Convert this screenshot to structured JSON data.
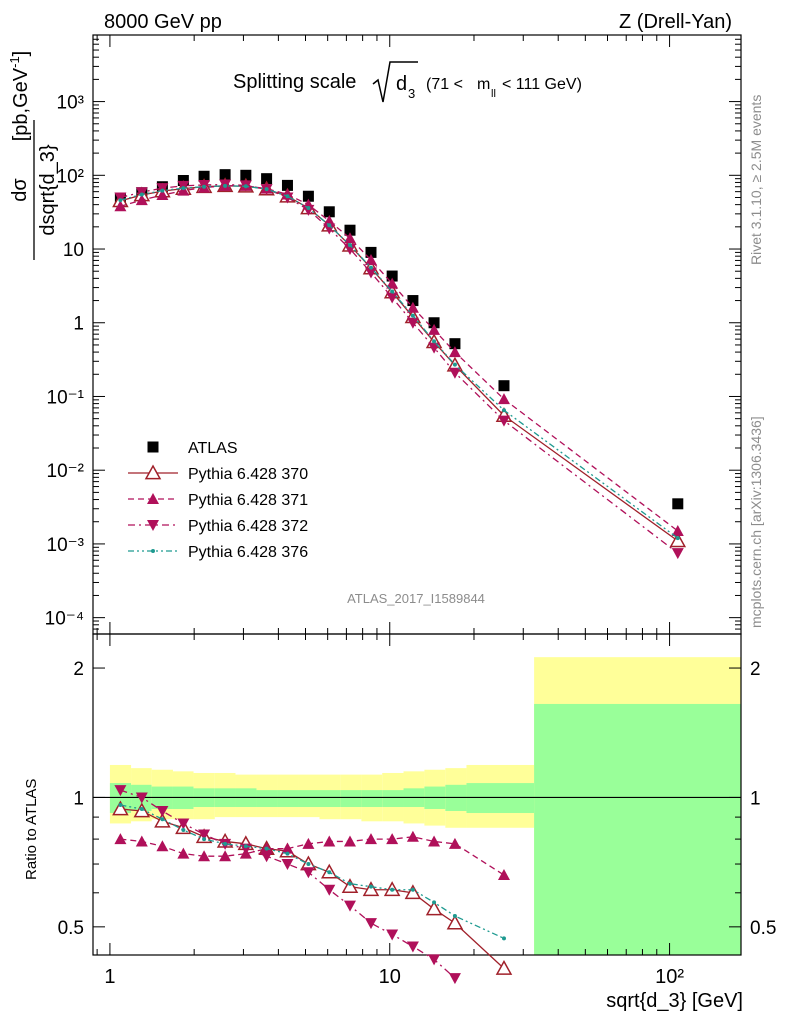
{
  "header": {
    "left": "8000 GeV pp",
    "right": "Z (Drell-Yan)"
  },
  "plot_title": {
    "main": "Splitting scale",
    "var": "d",
    "var_sub": "3",
    "cut_open": "(71 <",
    "cut_var": "m",
    "cut_sub": "ll",
    "cut_close": "< 111 GeV)"
  },
  "side_labels": {
    "rivet": "Rivet 3.1.10, ≥ 2.5M events",
    "mcplots": "mcplots.cern.ch [arXiv:1306.3436]"
  },
  "watermark": "ATLAS_2017_I1589844",
  "legend": [
    {
      "label": "ATLAS"
    },
    {
      "label": "Pythia 6.428 370"
    },
    {
      "label": "Pythia 6.428 371"
    },
    {
      "label": "Pythia 6.428 372"
    },
    {
      "label": "Pythia 6.428 376"
    }
  ],
  "colors": {
    "atlas": "#000000",
    "p370": "#a0202a",
    "p371": "#b0105a",
    "p372": "#b0105a",
    "p376": "#1e9a90",
    "band_inner": "#99ff99",
    "band_outer": "#ffff99"
  },
  "chart_data": [
    {
      "type": "scatter",
      "panel": "main",
      "ylabel": "dσ/dsqrt{d_3} [pb,GeV⁻¹]",
      "yscale": "log",
      "xscale": "log",
      "ylim": [
        6e-05,
        8000
      ],
      "xlim": [
        0.87,
        180
      ],
      "y_ticks": [
        "10⁻⁴",
        "10⁻³",
        "10⁻²",
        "10⁻¹",
        "1",
        "10",
        "10²",
        "10³"
      ],
      "series": [
        {
          "name": "ATLAS",
          "marker": "square",
          "x": [
            1.09,
            1.3,
            1.54,
            1.83,
            2.17,
            2.58,
            3.06,
            3.63,
            4.31,
            5.12,
            6.08,
            7.21,
            8.57,
            10.2,
            12.1,
            14.4,
            17.1,
            25.6,
            107
          ],
          "y": [
            48,
            58,
            70,
            85,
            97,
            102,
            100,
            90,
            73,
            52,
            32,
            18,
            9.0,
            4.3,
            2.0,
            1.0,
            0.52,
            0.14,
            0.0035
          ]
        },
        {
          "name": "Pythia 6.428 370",
          "marker": "open-triangle-up",
          "line": "solid",
          "x": [
            1.09,
            1.3,
            1.54,
            1.83,
            2.17,
            2.58,
            3.06,
            3.63,
            4.31,
            5.12,
            6.08,
            7.21,
            8.57,
            10.2,
            12.1,
            14.4,
            17.1,
            25.6,
            107
          ],
          "y": [
            45,
            54,
            61,
            66,
            70,
            72,
            71,
            65,
            52,
            36,
            21,
            11.2,
            5.5,
            2.6,
            1.2,
            0.55,
            0.265,
            0.055,
            0.0011
          ]
        },
        {
          "name": "Pythia 6.428 371",
          "marker": "filled-triangle-up",
          "line": "dashed",
          "x": [
            1.09,
            1.3,
            1.54,
            1.83,
            2.17,
            2.58,
            3.06,
            3.63,
            4.31,
            5.12,
            6.08,
            7.21,
            8.57,
            10.2,
            12.1,
            14.4,
            17.1,
            25.6,
            107
          ],
          "y": [
            38,
            46,
            54,
            62,
            68,
            72,
            72,
            66,
            55,
            40,
            24,
            14,
            7.1,
            3.4,
            1.6,
            0.8,
            0.4,
            0.092,
            0.0015
          ]
        },
        {
          "name": "Pythia 6.428 372",
          "marker": "filled-triangle-down",
          "line": "dash-dot",
          "x": [
            1.09,
            1.3,
            1.54,
            1.83,
            2.17,
            2.58,
            3.06,
            3.63,
            4.31,
            5.12,
            6.08,
            7.21,
            8.57,
            10.2,
            12.1,
            14.4,
            17.1,
            25.6,
            107
          ],
          "y": [
            50,
            59,
            67,
            72,
            74,
            75,
            73,
            65,
            50,
            34,
            19,
            10,
            4.8,
            2.2,
            1.0,
            0.46,
            0.21,
            0.047,
            0.00075
          ]
        },
        {
          "name": "Pythia 6.428 376",
          "marker": "dot",
          "line": "dash-dot-dot",
          "x": [
            1.09,
            1.3,
            1.54,
            1.83,
            2.17,
            2.58,
            3.06,
            3.63,
            4.31,
            5.12,
            6.08,
            7.21,
            8.57,
            10.2,
            12.1,
            14.4,
            17.1,
            25.6,
            107
          ],
          "y": [
            46,
            55,
            62,
            67,
            70,
            72,
            71,
            65,
            52,
            36,
            21,
            11.3,
            5.6,
            2.65,
            1.25,
            0.56,
            0.27,
            0.065,
            0.0012
          ]
        }
      ]
    },
    {
      "type": "line",
      "panel": "ratio",
      "ylabel": "Ratio to ATLAS",
      "xlabel": "sqrt{d_3} [GeV]",
      "xscale": "log",
      "yscale": "log",
      "xlim": [
        0.87,
        180
      ],
      "ylim": [
        0.43,
        2.4
      ],
      "x_ticks": [
        "1",
        "10",
        "10²"
      ],
      "y_ticks": [
        "0.5",
        "1",
        "2"
      ],
      "band_edges": [
        1.0,
        1.19,
        1.41,
        1.68,
        1.99,
        2.37,
        2.81,
        3.34,
        3.97,
        4.72,
        5.61,
        6.66,
        7.92,
        9.4,
        11.2,
        13.3,
        15.8,
        18.8,
        32.8,
        180
      ],
      "band_inner_upper": [
        1.08,
        1.07,
        1.06,
        1.06,
        1.05,
        1.05,
        1.05,
        1.04,
        1.04,
        1.04,
        1.04,
        1.04,
        1.04,
        1.04,
        1.05,
        1.06,
        1.07,
        1.08,
        1.65
      ],
      "band_inner_lower": [
        0.92,
        0.93,
        0.94,
        0.94,
        0.95,
        0.95,
        0.95,
        0.95,
        0.95,
        0.95,
        0.95,
        0.95,
        0.95,
        0.95,
        0.95,
        0.94,
        0.93,
        0.92,
        0.37
      ],
      "band_outer_upper": [
        1.19,
        1.17,
        1.16,
        1.15,
        1.14,
        1.14,
        1.13,
        1.13,
        1.13,
        1.13,
        1.13,
        1.13,
        1.13,
        1.14,
        1.15,
        1.16,
        1.17,
        1.19,
        2.12
      ],
      "band_outer_lower": [
        0.87,
        0.88,
        0.89,
        0.89,
        0.89,
        0.9,
        0.9,
        0.9,
        0.9,
        0.9,
        0.89,
        0.89,
        0.88,
        0.88,
        0.87,
        0.86,
        0.85,
        0.85,
        0.35
      ],
      "series": [
        {
          "name": "Pythia 6.428 370",
          "x": [
            1.09,
            1.3,
            1.54,
            1.83,
            2.17,
            2.58,
            3.06,
            3.63,
            4.31,
            5.12,
            6.08,
            7.21,
            8.57,
            10.2,
            12.1,
            14.4,
            17.1,
            25.6
          ],
          "y": [
            0.94,
            0.93,
            0.88,
            0.85,
            0.81,
            0.79,
            0.78,
            0.76,
            0.75,
            0.7,
            0.67,
            0.62,
            0.61,
            0.61,
            0.6,
            0.55,
            0.51,
            0.4
          ]
        },
        {
          "name": "Pythia 6.428 371",
          "x": [
            1.09,
            1.3,
            1.54,
            1.83,
            2.17,
            2.58,
            3.06,
            3.63,
            4.31,
            5.12,
            6.08,
            7.21,
            8.57,
            10.2,
            12.1,
            14.4,
            17.1,
            25.6
          ],
          "y": [
            0.8,
            0.79,
            0.77,
            0.74,
            0.73,
            0.73,
            0.74,
            0.76,
            0.76,
            0.78,
            0.79,
            0.79,
            0.8,
            0.8,
            0.81,
            0.79,
            0.78,
            0.66
          ]
        },
        {
          "name": "Pythia 6.428 372",
          "x": [
            1.09,
            1.3,
            1.54,
            1.83,
            2.17,
            2.58,
            3.06,
            3.63,
            4.31,
            5.12,
            6.08,
            7.21,
            8.57,
            10.2,
            12.1,
            14.4,
            17.1
          ],
          "y": [
            1.04,
            1.0,
            0.93,
            0.87,
            0.82,
            0.78,
            0.76,
            0.73,
            0.7,
            0.67,
            0.61,
            0.56,
            0.51,
            0.48,
            0.45,
            0.42,
            0.38
          ]
        },
        {
          "name": "Pythia 6.428 376",
          "x": [
            1.09,
            1.3,
            1.54,
            1.83,
            2.17,
            2.58,
            3.06,
            3.63,
            4.31,
            5.12,
            6.08,
            7.21,
            8.57,
            10.2,
            12.1,
            14.4,
            17.1,
            25.6
          ],
          "y": [
            0.96,
            0.94,
            0.89,
            0.84,
            0.8,
            0.78,
            0.77,
            0.76,
            0.74,
            0.7,
            0.67,
            0.63,
            0.62,
            0.61,
            0.61,
            0.57,
            0.53,
            0.47
          ]
        }
      ]
    }
  ]
}
